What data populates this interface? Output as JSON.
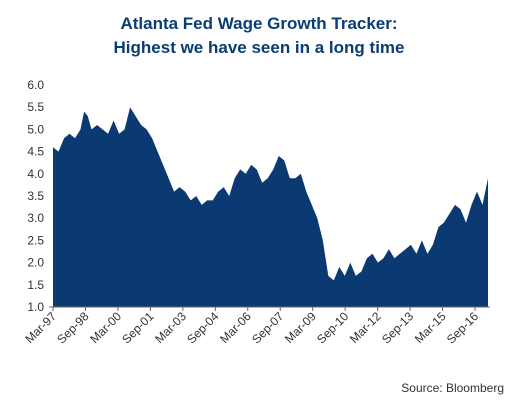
{
  "colors": {
    "title": "#0a3d73",
    "area": "#0b3a73",
    "axis": "#666666",
    "text": "#333333"
  },
  "chart_data": {
    "type": "area",
    "title_line1": "Atlanta Fed Wage Growth Tracker:",
    "title_line2": "Highest we have seen in a long time",
    "source": "Source: Bloomberg",
    "xlabel": "",
    "ylabel": "",
    "ylim": [
      1.0,
      6.0
    ],
    "yticks": [
      "6.0",
      "5.5",
      "5.0",
      "4.5",
      "4.0",
      "3.5",
      "3.0",
      "2.5",
      "2.0",
      "1.5",
      "1.0"
    ],
    "xticks": [
      "Mar-97",
      "Sep-98",
      "Mar-00",
      "Sep-01",
      "Mar-03",
      "Sep-04",
      "Mar-06",
      "Sep-07",
      "Mar-09",
      "Sep-10",
      "Mar-12",
      "Sep-13",
      "Mar-15",
      "Sep-16"
    ],
    "grid": false,
    "legend": "none",
    "series": [
      {
        "x": [
          1997.17,
          1997.42,
          1997.67,
          1997.92,
          1998.17,
          1998.42,
          1998.58,
          1998.75,
          1998.92,
          1999.17,
          1999.42,
          1999.67,
          1999.92,
          2000.17,
          2000.42,
          2000.67,
          2000.92,
          2001.17,
          2001.42,
          2001.67,
          2001.92,
          2002.17,
          2002.42,
          2002.67,
          2002.92,
          2003.17,
          2003.42,
          2003.67,
          2003.92,
          2004.17,
          2004.42,
          2004.67,
          2004.92,
          2005.17,
          2005.42,
          2005.67,
          2005.92,
          2006.17,
          2006.42,
          2006.67,
          2006.92,
          2007.17,
          2007.42,
          2007.67,
          2007.92,
          2008.17,
          2008.42,
          2008.67,
          2008.92,
          2009.17,
          2009.42,
          2009.67,
          2009.92,
          2010.17,
          2010.42,
          2010.67,
          2010.92,
          2011.17,
          2011.42,
          2011.67,
          2011.92,
          2012.17,
          2012.42,
          2012.67,
          2012.92,
          2013.17,
          2013.42,
          2013.67,
          2013.92,
          2014.17,
          2014.42,
          2014.67,
          2014.92,
          2015.17,
          2015.42,
          2015.67,
          2015.92,
          2016.17,
          2016.42,
          2016.67,
          2016.92
        ],
        "values": [
          4.6,
          4.5,
          4.8,
          4.9,
          4.8,
          5.0,
          5.4,
          5.3,
          5.0,
          5.1,
          5.0,
          4.9,
          5.2,
          4.9,
          5.0,
          5.5,
          5.3,
          5.1,
          5.0,
          4.8,
          4.5,
          4.2,
          3.9,
          3.6,
          3.7,
          3.6,
          3.4,
          3.5,
          3.3,
          3.4,
          3.4,
          3.6,
          3.7,
          3.5,
          3.9,
          4.1,
          4.0,
          4.2,
          4.1,
          3.8,
          3.9,
          4.1,
          4.4,
          4.3,
          3.9,
          3.9,
          4.0,
          3.6,
          3.3,
          3.0,
          2.5,
          1.7,
          1.6,
          1.9,
          1.7,
          2.0,
          1.7,
          1.8,
          2.1,
          2.2,
          2.0,
          2.1,
          2.3,
          2.1,
          2.2,
          2.3,
          2.4,
          2.2,
          2.5,
          2.2,
          2.4,
          2.8,
          2.9,
          3.1,
          3.3,
          3.2,
          2.9,
          3.3,
          3.6,
          3.3,
          3.9
        ]
      }
    ]
  }
}
